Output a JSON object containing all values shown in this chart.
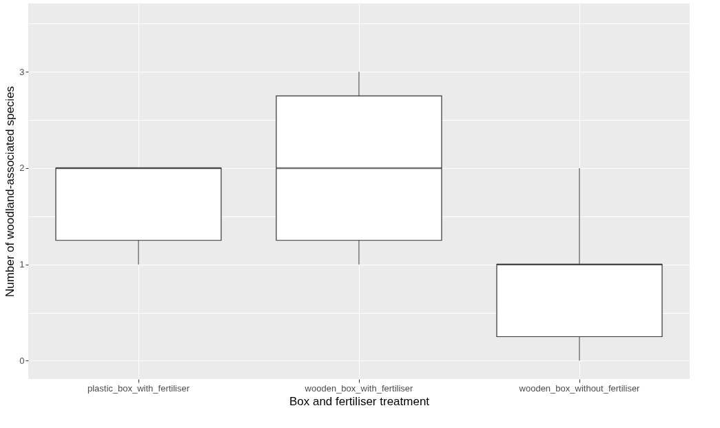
{
  "chart_data": {
    "type": "box",
    "xlabel": "Box and fertiliser treatment",
    "ylabel": "Number of woodland-associated species",
    "categories": [
      "plastic_box_with_fertiliser",
      "wooden_box_with_fertiliser",
      "wooden_box_without_fertiliser"
    ],
    "boxes": [
      {
        "low": 1,
        "q1": 1.25,
        "median": 2,
        "q3": 2,
        "high": 2
      },
      {
        "low": 1,
        "q1": 1.25,
        "median": 2,
        "q3": 2.75,
        "high": 3
      },
      {
        "low": 0,
        "q1": 0.25,
        "median": 1,
        "q3": 1,
        "high": 2
      }
    ],
    "ylim": [
      -0.19,
      3.71
    ],
    "yticks": [
      0,
      {
        "value": 0.5,
        "label": null
      },
      1,
      {
        "value": 1.5,
        "label": null
      },
      2,
      {
        "value": 2.5,
        "label": null
      },
      3,
      {
        "value": 3.5,
        "label": null
      }
    ],
    "grid": true
  }
}
